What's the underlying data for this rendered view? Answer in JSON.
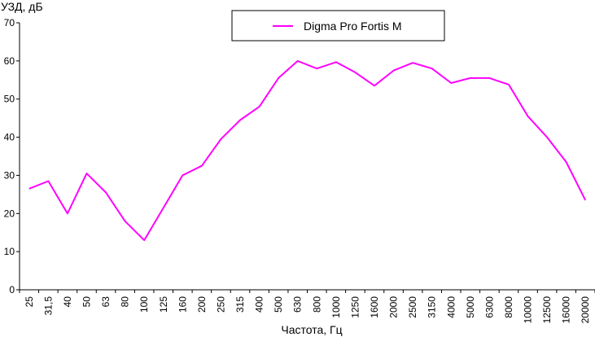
{
  "chart_data": {
    "type": "line",
    "title": "",
    "ylabel": "УЗД, дБ",
    "xlabel": "Частота, Гц",
    "ylim": [
      0,
      70
    ],
    "yticks": [
      "0",
      "10",
      "20",
      "30",
      "40",
      "50",
      "60",
      "70"
    ],
    "grid": false,
    "legend_position": "top-center",
    "categories": [
      "25",
      "31,5",
      "40",
      "50",
      "63",
      "80",
      "100",
      "125",
      "160",
      "200",
      "250",
      "315",
      "400",
      "500",
      "630",
      "800",
      "1000",
      "1250",
      "1600",
      "2000",
      "2500",
      "3150",
      "4000",
      "5000",
      "6300",
      "8000",
      "10000",
      "12500",
      "16000",
      "20000"
    ],
    "series": [
      {
        "name": "Digma Pro Fortis M",
        "color": "#ff00ff",
        "values": [
          26.5,
          28.5,
          20,
          30.5,
          25.5,
          18,
          13,
          21.5,
          30,
          32.5,
          39.5,
          44.5,
          48,
          55.5,
          60,
          58,
          59.7,
          57,
          53.5,
          57.5,
          59.5,
          58,
          54.2,
          55.5,
          55.5,
          53.8,
          45.5,
          40,
          33.5,
          23.5
        ]
      }
    ]
  }
}
